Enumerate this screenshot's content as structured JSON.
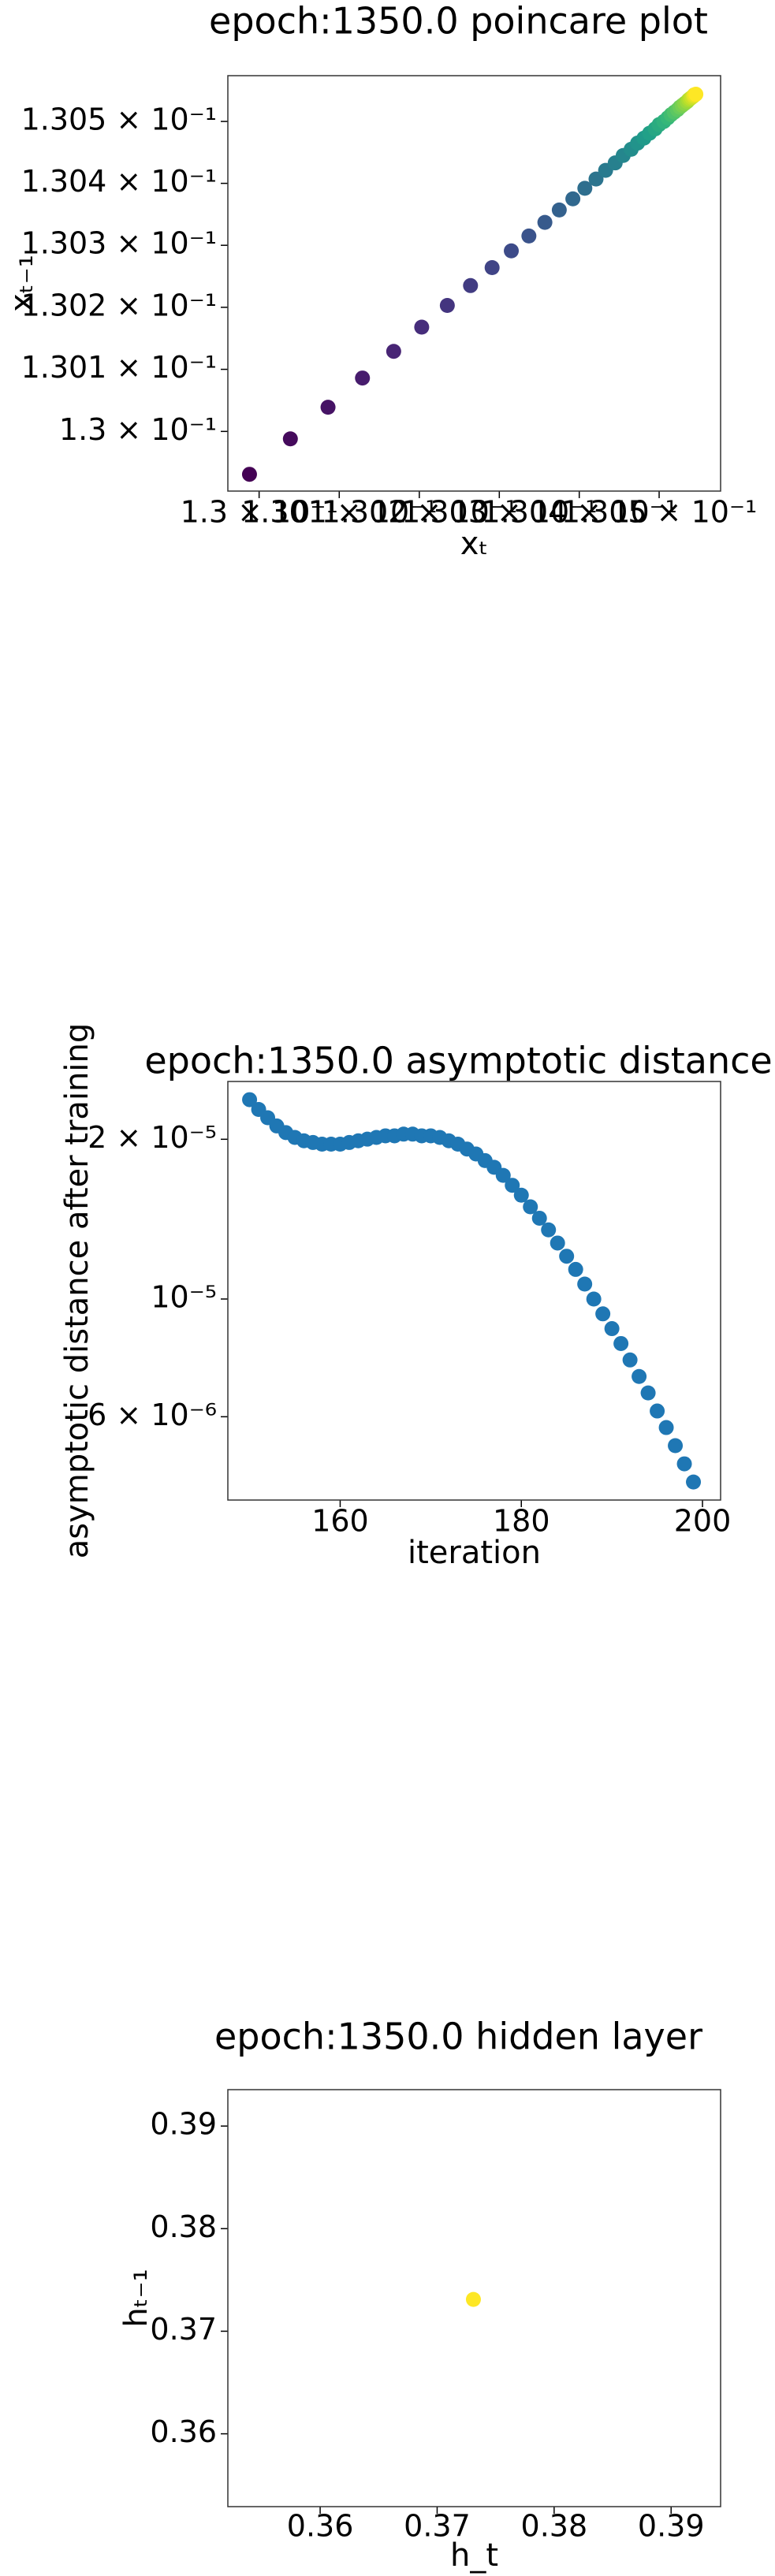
{
  "chart_data": [
    {
      "type": "scatter",
      "title": "epoch:1350.0 poincare plot",
      "x_label": "xₜ",
      "y_label": "xₜ₋₁",
      "x": [
        0.129988,
        0.130039,
        0.130086,
        0.130129,
        0.130168,
        0.130203,
        0.130235,
        0.130264,
        0.130291,
        0.130315,
        0.130337,
        0.130357,
        0.130375,
        0.130392,
        0.130407,
        0.130421,
        0.130433,
        0.130445,
        0.130455,
        0.130465,
        0.130473,
        0.130481,
        0.130488,
        0.130495,
        0.1305,
        0.130506,
        0.130511,
        0.130515,
        0.130519,
        0.130523,
        0.130526,
        0.130529,
        0.130532,
        0.130535,
        0.130537,
        0.130539,
        0.130541,
        0.130543,
        0.130544,
        0.130546
      ],
      "y": [
        0.129931,
        0.129988,
        0.130039,
        0.130086,
        0.130129,
        0.130168,
        0.130203,
        0.130235,
        0.130264,
        0.130291,
        0.130315,
        0.130337,
        0.130357,
        0.130375,
        0.130392,
        0.130407,
        0.130421,
        0.130433,
        0.130445,
        0.130455,
        0.130465,
        0.130473,
        0.130481,
        0.130488,
        0.130495,
        0.1305,
        0.130506,
        0.130511,
        0.130515,
        0.130519,
        0.130523,
        0.130526,
        0.130529,
        0.130532,
        0.130535,
        0.130537,
        0.130539,
        0.130541,
        0.130543,
        0.130544
      ],
      "colormap": "viridis",
      "log_x": true,
      "log_y": true,
      "xlim": [
        0.129961,
        0.130577
      ],
      "ylim": [
        0.129904,
        0.130574
      ],
      "xticks": [
        {
          "value": 0.13,
          "label": "1.3 × 10⁻¹"
        },
        {
          "value": 0.1301,
          "label": "1.301 × 10⁻¹"
        },
        {
          "value": 0.1302,
          "label": "1.302 × 10⁻¹"
        },
        {
          "value": 0.1303,
          "label": "1.303 × 10⁻¹"
        },
        {
          "value": 0.1304,
          "label": "1.304 × 10⁻¹"
        },
        {
          "value": 0.1305,
          "label": "1.305 × 10⁻¹"
        }
      ],
      "yticks": [
        {
          "value": 0.13,
          "label": "1.3 × 10⁻¹"
        },
        {
          "value": 0.1301,
          "label": "1.301 × 10⁻¹"
        },
        {
          "value": 0.1302,
          "label": "1.302 × 10⁻¹"
        },
        {
          "value": 0.1303,
          "label": "1.303 × 10⁻¹"
        },
        {
          "value": 0.1304,
          "label": "1.304 × 10⁻¹"
        },
        {
          "value": 0.1305,
          "label": "1.305 × 10⁻¹"
        }
      ]
    },
    {
      "type": "scatter",
      "title": "epoch:1350.0 asymptotic distance",
      "x_label": "iteration",
      "y_label": "asymptotic distance after training",
      "x": [
        150,
        151,
        152,
        153,
        154,
        155,
        156,
        157,
        158,
        159,
        160,
        161,
        162,
        163,
        164,
        165,
        166,
        167,
        168,
        169,
        170,
        171,
        172,
        173,
        174,
        175,
        176,
        177,
        178,
        179,
        180,
        181,
        182,
        183,
        184,
        185,
        186,
        187,
        188,
        189,
        190,
        191,
        192,
        193,
        194,
        195,
        196,
        197,
        198,
        199
      ],
      "y": [
        2.375e-05,
        2.276e-05,
        2.196e-05,
        2.119e-05,
        2.059e-05,
        2.016e-05,
        1.987e-05,
        1.972e-05,
        1.958e-05,
        1.958e-05,
        1.958e-05,
        1.972e-05,
        1.987e-05,
        2.001e-05,
        2.016e-05,
        2.03e-05,
        2.03e-05,
        2.045e-05,
        2.045e-05,
        2.03e-05,
        2.03e-05,
        2.016e-05,
        1.987e-05,
        1.958e-05,
        1.917e-05,
        1.876e-05,
        1.823e-05,
        1.771e-05,
        1.71e-05,
        1.638e-05,
        1.569e-05,
        1.492e-05,
        1.42e-05,
        1.35e-05,
        1.275e-05,
        1.204e-05,
        1.137e-05,
        1.067e-05,
        1e-05,
        9.376e-06,
        8.794e-06,
        8.243e-06,
        7.676e-06,
        7.145e-06,
        6.653e-06,
        6.151e-06,
        5.725e-06,
        5.293e-06,
        4.891e-06,
        4.52e-06
      ],
      "color": "#1f77b4",
      "log_y": true,
      "xlim": [
        147.6,
        202
      ],
      "ylim": [
        4.18e-06,
        2.57e-05
      ],
      "xticks": [
        160,
        180,
        200
      ],
      "yticks": [
        {
          "value": 2e-05,
          "label": "2 × 10⁻⁵"
        },
        {
          "value": 1e-05,
          "label": "10⁻⁵"
        },
        {
          "value": 6e-06,
          "label": "6 × 10⁻⁶"
        }
      ]
    },
    {
      "type": "scatter",
      "title": "epoch:1350.0 hidden layer",
      "x_label": "h_t",
      "y_label": "hₜ₋₁",
      "x": [
        0.3731
      ],
      "y": [
        0.3731
      ],
      "color": "#fde725",
      "xlim": [
        0.35211,
        0.39423
      ],
      "ylim": [
        0.3529,
        0.39355
      ],
      "xticks": [
        0.36,
        0.37,
        0.38,
        0.39
      ],
      "yticks": [
        0.36,
        0.37,
        0.38,
        0.39
      ]
    }
  ]
}
